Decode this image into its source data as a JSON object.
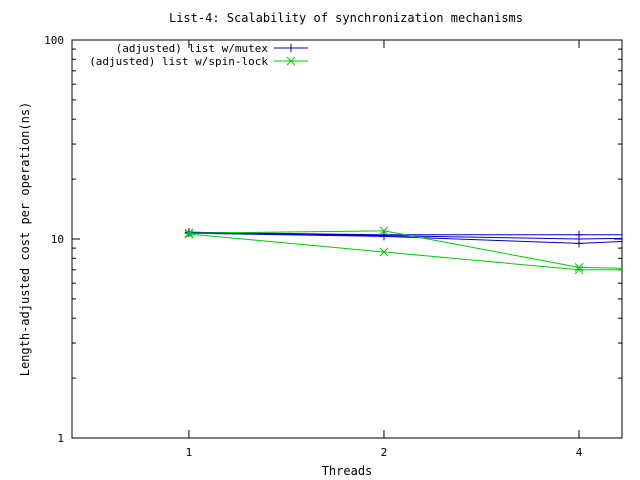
{
  "chart_data": {
    "type": "line",
    "title": "List-4: Scalability of synchronization mechanisms",
    "xlabel": "Threads",
    "ylabel": "Length-adjusted cost per operation(ns)",
    "x_scale": "log2",
    "y_scale": "log10",
    "xlim": [
      0.66,
      4.66
    ],
    "ylim": [
      1,
      100
    ],
    "x_ticks": [
      {
        "value": 1,
        "label": "1"
      },
      {
        "value": 2,
        "label": "2"
      },
      {
        "value": 4,
        "label": "4"
      }
    ],
    "y_ticks": [
      {
        "value": 1,
        "label": "1"
      },
      {
        "value": 10,
        "label": "10"
      },
      {
        "value": 100,
        "label": "100"
      }
    ],
    "grid": false,
    "legend_position": "top-left",
    "series": [
      {
        "name": "(adjusted) list w/mutex",
        "color": "#0000cc",
        "marker": "plus",
        "runs": [
          {
            "x": [
              1,
              2,
              4,
              5
            ],
            "y": [
              10.8,
              10.5,
              10.5,
              10.5
            ]
          },
          {
            "x": [
              1,
              2,
              4,
              5
            ],
            "y": [
              10.7,
              10.3,
              9.5,
              9.8
            ]
          },
          {
            "x": [
              1,
              2,
              4,
              5
            ],
            "y": [
              10.8,
              10.4,
              10.0,
              10.1
            ]
          }
        ]
      },
      {
        "name": "(adjusted) list w/spin-lock",
        "color": "#00cc00",
        "marker": "cross",
        "runs": [
          {
            "x": [
              1,
              2,
              4,
              5
            ],
            "y": [
              10.7,
              11.0,
              7.2,
              7.1
            ]
          },
          {
            "x": [
              1,
              2,
              4,
              5
            ],
            "y": [
              10.6,
              8.6,
              7.0,
              7.0
            ]
          }
        ]
      }
    ]
  }
}
